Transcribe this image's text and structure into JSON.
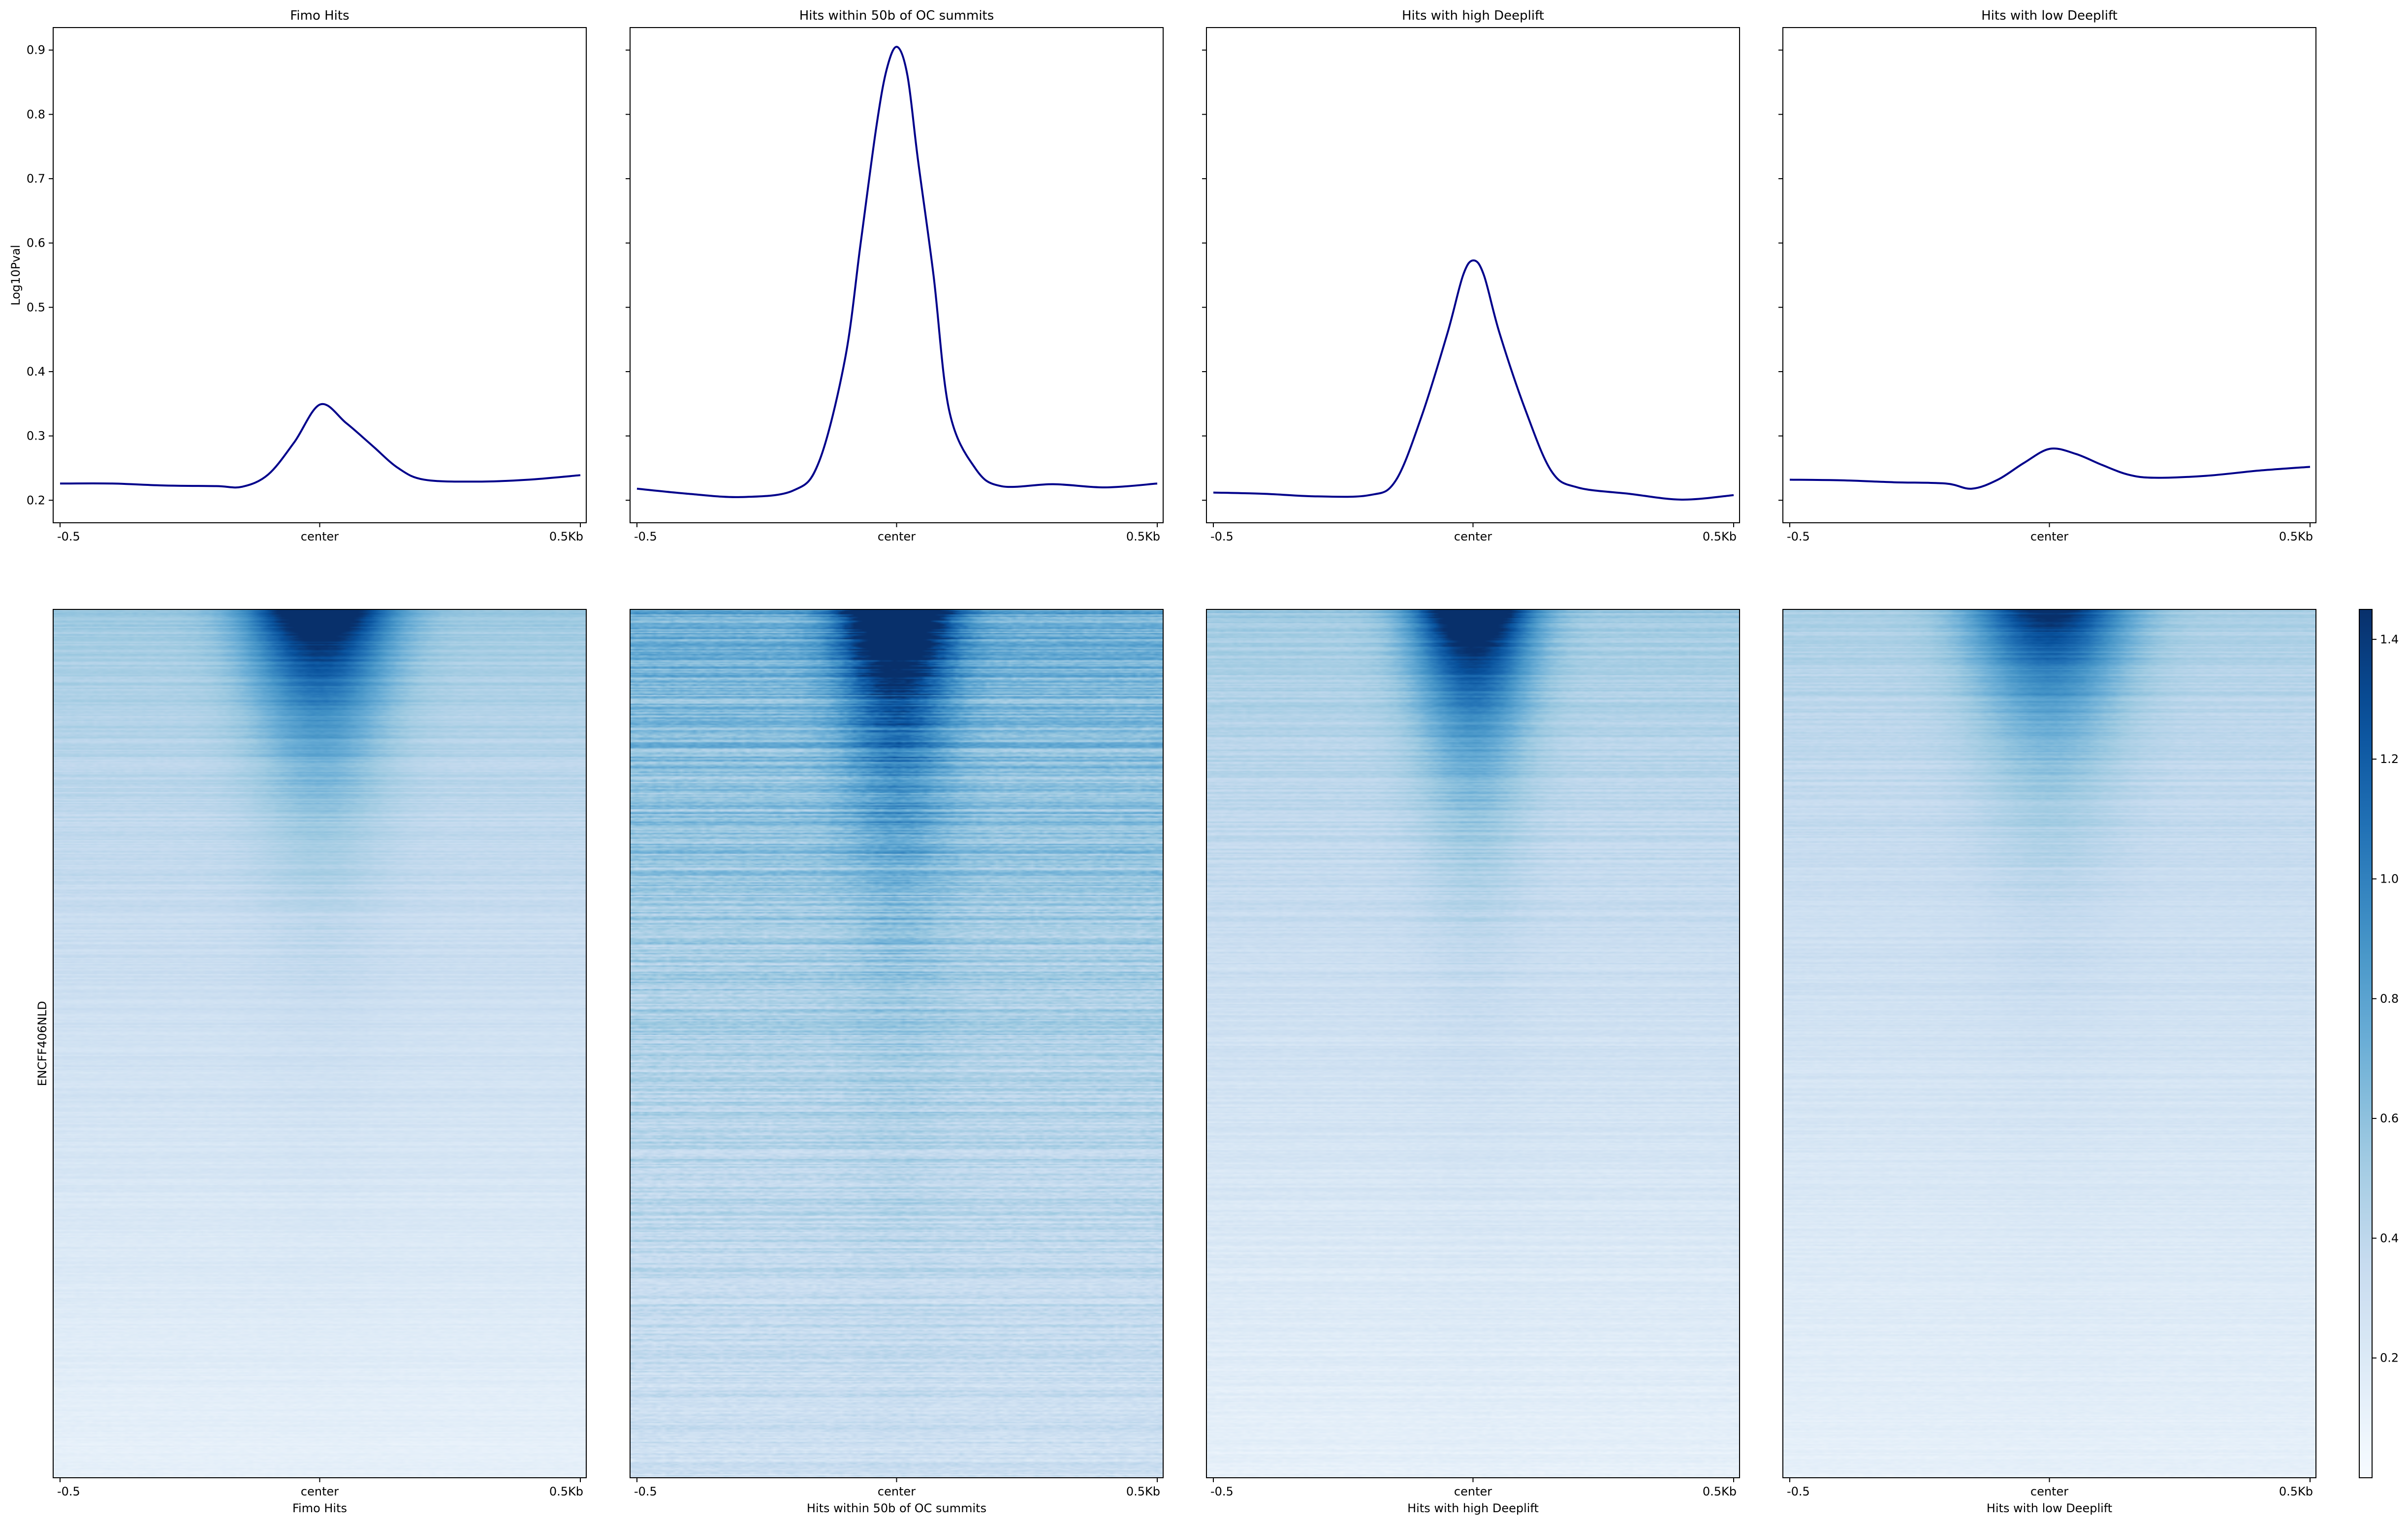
{
  "chart_data": [
    {
      "type": "line",
      "title": "Fimo Hits",
      "ylabel": "Log10Pval",
      "xlabel": "",
      "x_ticks": [
        "-0.5",
        "center",
        "0.5Kb"
      ],
      "x": [
        -0.5,
        -0.4,
        -0.3,
        -0.2,
        -0.15,
        -0.1,
        -0.05,
        0.0,
        0.05,
        0.1,
        0.15,
        0.2,
        0.3,
        0.4,
        0.5
      ],
      "values": [
        0.226,
        0.226,
        0.223,
        0.222,
        0.221,
        0.24,
        0.29,
        0.349,
        0.32,
        0.285,
        0.25,
        0.232,
        0.229,
        0.232,
        0.239
      ],
      "ylim": [
        0.165,
        0.935
      ],
      "y_ticks": [
        0.2,
        0.3,
        0.4,
        0.5,
        0.6,
        0.7,
        0.8,
        0.9
      ],
      "color": "#00008b"
    },
    {
      "type": "line",
      "title": "Hits within 50b of OC summits",
      "ylabel": "",
      "xlabel": "",
      "x_ticks": [
        "-0.5",
        "center",
        "0.5Kb"
      ],
      "x": [
        -0.5,
        -0.4,
        -0.3,
        -0.2,
        -0.15,
        -0.1,
        -0.07,
        -0.04,
        -0.02,
        0.0,
        0.02,
        0.04,
        0.07,
        0.1,
        0.15,
        0.2,
        0.3,
        0.4,
        0.5
      ],
      "values": [
        0.218,
        0.21,
        0.205,
        0.215,
        0.26,
        0.42,
        0.6,
        0.78,
        0.87,
        0.905,
        0.86,
        0.73,
        0.55,
        0.34,
        0.25,
        0.222,
        0.225,
        0.22,
        0.226
      ],
      "ylim": [
        0.165,
        0.935
      ],
      "y_ticks": [
        0.2,
        0.3,
        0.4,
        0.5,
        0.6,
        0.7,
        0.8,
        0.9
      ],
      "color": "#00008b"
    },
    {
      "type": "line",
      "title": "Hits with high Deeplift",
      "ylabel": "",
      "xlabel": "",
      "x_ticks": [
        "-0.5",
        "center",
        "0.5Kb"
      ],
      "x": [
        -0.5,
        -0.4,
        -0.3,
        -0.2,
        -0.15,
        -0.1,
        -0.05,
        -0.02,
        0.0,
        0.02,
        0.05,
        0.1,
        0.15,
        0.2,
        0.3,
        0.4,
        0.5
      ],
      "values": [
        0.212,
        0.21,
        0.206,
        0.208,
        0.23,
        0.33,
        0.46,
        0.55,
        0.573,
        0.55,
        0.46,
        0.34,
        0.245,
        0.22,
        0.21,
        0.201,
        0.208
      ],
      "ylim": [
        0.165,
        0.935
      ],
      "y_ticks": [
        0.2,
        0.3,
        0.4,
        0.5,
        0.6,
        0.7,
        0.8,
        0.9
      ],
      "color": "#00008b"
    },
    {
      "type": "line",
      "title": "Hits with low Deeplift",
      "ylabel": "",
      "xlabel": "",
      "x_ticks": [
        "-0.5",
        "center",
        "0.5Kb"
      ],
      "x": [
        -0.5,
        -0.4,
        -0.3,
        -0.2,
        -0.15,
        -0.1,
        -0.05,
        0.0,
        0.05,
        0.1,
        0.15,
        0.2,
        0.3,
        0.4,
        0.5
      ],
      "values": [
        0.232,
        0.231,
        0.228,
        0.226,
        0.218,
        0.232,
        0.258,
        0.28,
        0.272,
        0.255,
        0.24,
        0.235,
        0.238,
        0.246,
        0.252
      ],
      "ylim": [
        0.165,
        0.935
      ],
      "y_ticks": [
        0.2,
        0.3,
        0.4,
        0.5,
        0.6,
        0.7,
        0.8,
        0.9
      ],
      "color": "#00008b"
    },
    {
      "type": "heatmap",
      "title": "",
      "xlabel": "Fimo Hits",
      "ylabel": "ENCFF406NLD",
      "x_ticks": [
        "-0.5",
        "center",
        "0.5Kb"
      ],
      "peak_width": 0.18,
      "noise": 0.12,
      "top_intensity": 1.3,
      "background_top": 0.55,
      "background_bottom": 0.12,
      "color_range": [
        0.0,
        1.45
      ]
    },
    {
      "type": "heatmap",
      "title": "",
      "xlabel": "Hits within 50b of OC summits",
      "ylabel": "",
      "x_ticks": [
        "-0.5",
        "center",
        "0.5Kb"
      ],
      "peak_width": 0.14,
      "noise": 0.35,
      "top_intensity": 1.45,
      "background_top": 0.75,
      "background_bottom": 0.3,
      "color_range": [
        0.0,
        1.45
      ]
    },
    {
      "type": "heatmap",
      "title": "",
      "xlabel": "Hits with high Deeplift",
      "ylabel": "",
      "x_ticks": [
        "-0.5",
        "center",
        "0.5Kb"
      ],
      "peak_width": 0.15,
      "noise": 0.15,
      "top_intensity": 1.4,
      "background_top": 0.55,
      "background_bottom": 0.12,
      "color_range": [
        0.0,
        1.45
      ]
    },
    {
      "type": "heatmap",
      "title": "",
      "xlabel": "Hits with low Deeplift",
      "ylabel": "",
      "x_ticks": [
        "-0.5",
        "center",
        "0.5Kb"
      ],
      "peak_width": 0.2,
      "noise": 0.12,
      "top_intensity": 1.0,
      "background_top": 0.5,
      "background_bottom": 0.12,
      "color_range": [
        0.0,
        1.45
      ]
    }
  ],
  "colorbar": {
    "ticks": [
      0.2,
      0.4,
      0.6,
      0.8,
      1.0,
      1.2,
      1.4
    ],
    "range": [
      0.0,
      1.45
    ],
    "colormap": "Blues",
    "low_color": "#f7fbff",
    "high_color": "#08306b"
  }
}
